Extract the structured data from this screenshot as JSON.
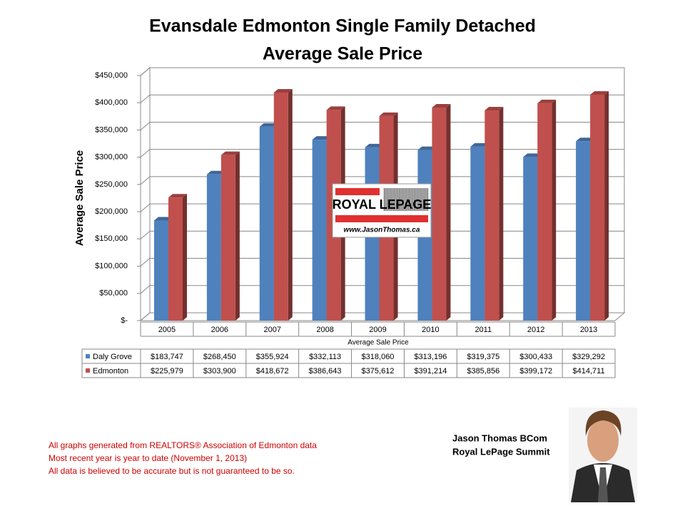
{
  "chart_data": {
    "type": "bar",
    "title": "Evansdale Edmonton Single Family Detached",
    "subtitle": "Average Sale Price",
    "y_axis_label": "Average Sale Price",
    "x_axis_label": "Average Sale Price",
    "categories": [
      "2005",
      "2006",
      "2007",
      "2008",
      "2009",
      "2010",
      "2011",
      "2012",
      "2013"
    ],
    "series": [
      {
        "name": "Daly Grove",
        "color": "#4f81bd",
        "values": [
          183747,
          268450,
          355924,
          332113,
          318060,
          313196,
          319375,
          300433,
          329292
        ],
        "value_labels": [
          "$183,747",
          "$268,450",
          "$355,924",
          "$332,113",
          "$318,060",
          "$313,196",
          "$319,375",
          "$300,433",
          "$329,292"
        ]
      },
      {
        "name": "Edmonton",
        "color": "#c0504d",
        "values": [
          225979,
          303900,
          418672,
          386643,
          375612,
          391214,
          385856,
          399172,
          414711
        ],
        "value_labels": [
          "$225,979",
          "$303,900",
          "$418,672",
          "$386,643",
          "$375,612",
          "$391,214",
          "$385,856",
          "$399,172",
          "$414,711"
        ]
      }
    ],
    "ylim": [
      0,
      450000
    ],
    "yticks": [
      {
        "value": 0,
        "label": "$-"
      },
      {
        "value": 50000,
        "label": "$50,000"
      },
      {
        "value": 100000,
        "label": "$100,000"
      },
      {
        "value": 150000,
        "label": "$150,000"
      },
      {
        "value": 200000,
        "label": "$200,000"
      },
      {
        "value": 250000,
        "label": "$250,000"
      },
      {
        "value": 300000,
        "label": "$300,000"
      },
      {
        "value": 350000,
        "label": "$350,000"
      },
      {
        "value": 400000,
        "label": "$400,000"
      },
      {
        "value": 450000,
        "label": "$450,000"
      }
    ],
    "grid": true,
    "logo": {
      "brand": "ROYAL LEPAGE",
      "url": "www.JasonThomas.ca"
    },
    "notes": [
      "All graphs generated from REALTORS® Association of Edmonton data",
      "Most recent year is year to date (November 1, 2013)",
      "All data is believed to be accurate but is not guaranteed to be so."
    ],
    "signature": [
      "Jason Thomas BCom",
      "Royal LePage Summit"
    ]
  }
}
